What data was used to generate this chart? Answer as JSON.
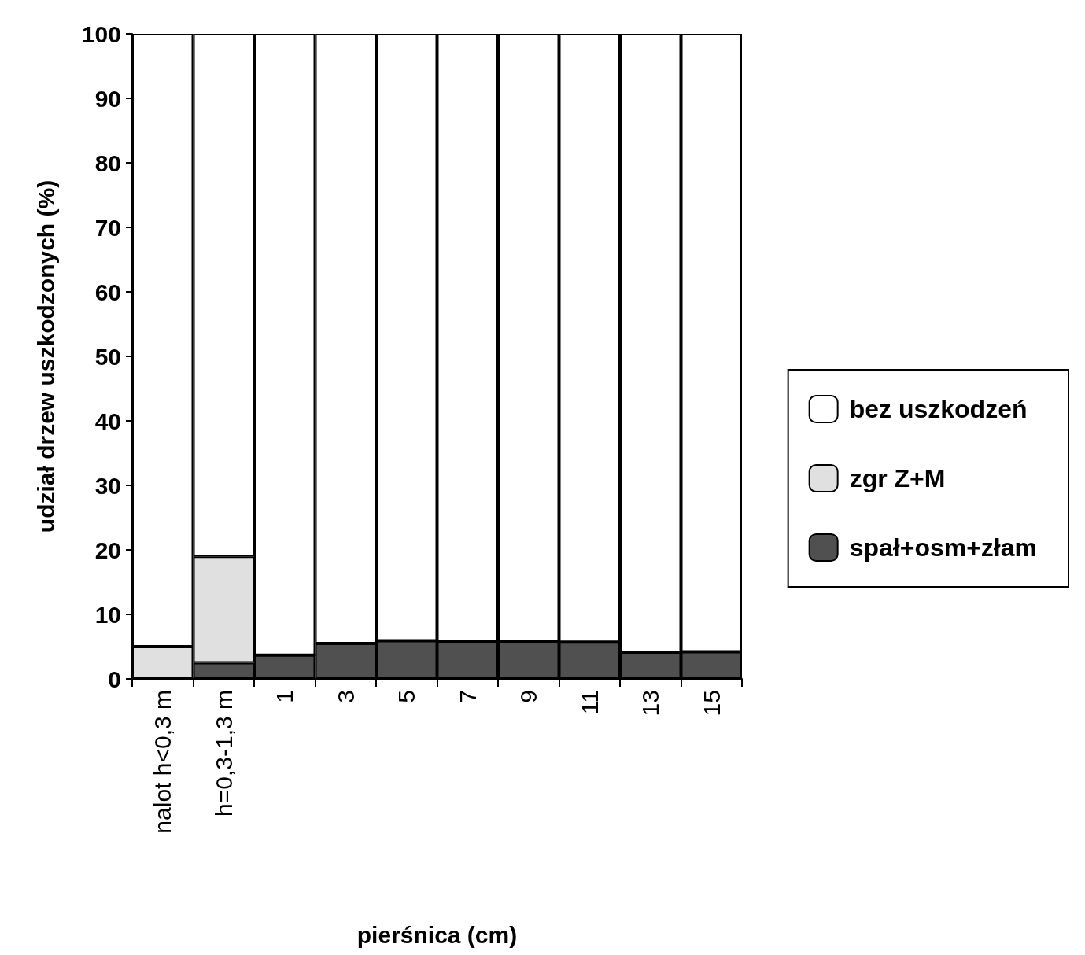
{
  "chart_data": {
    "type": "bar",
    "stacked": true,
    "xlabel": "pierśnica (cm)",
    "ylabel": "udział drzew uszkodzonych (%)",
    "categories": [
      "nalot h<0,3 m",
      "h=0,3-1,3 m",
      "1",
      "3",
      "5",
      "7",
      "9",
      "11",
      "13",
      "15"
    ],
    "series": [
      {
        "name": "spał+osm+złam",
        "color": "#505050",
        "values": [
          0,
          2.5,
          3.7,
          5.5,
          5.9,
          5.8,
          5.8,
          5.7,
          4.1,
          4.2
        ]
      },
      {
        "name": "zgr Z+M",
        "color": "#e0e0e0",
        "values": [
          5,
          16.5,
          0,
          0,
          0,
          0,
          0,
          0,
          0,
          0
        ]
      },
      {
        "name": "bez uszkodzeń",
        "color": "#ffffff",
        "values": [
          95,
          81,
          96.3,
          94.5,
          94.1,
          94.2,
          94.2,
          94.3,
          95.9,
          95.8
        ]
      }
    ],
    "ylim": [
      0,
      100
    ],
    "yticks": [
      0,
      10,
      20,
      30,
      40,
      50,
      60,
      70,
      80,
      90,
      100
    ],
    "grid": false,
    "legend": "right"
  }
}
